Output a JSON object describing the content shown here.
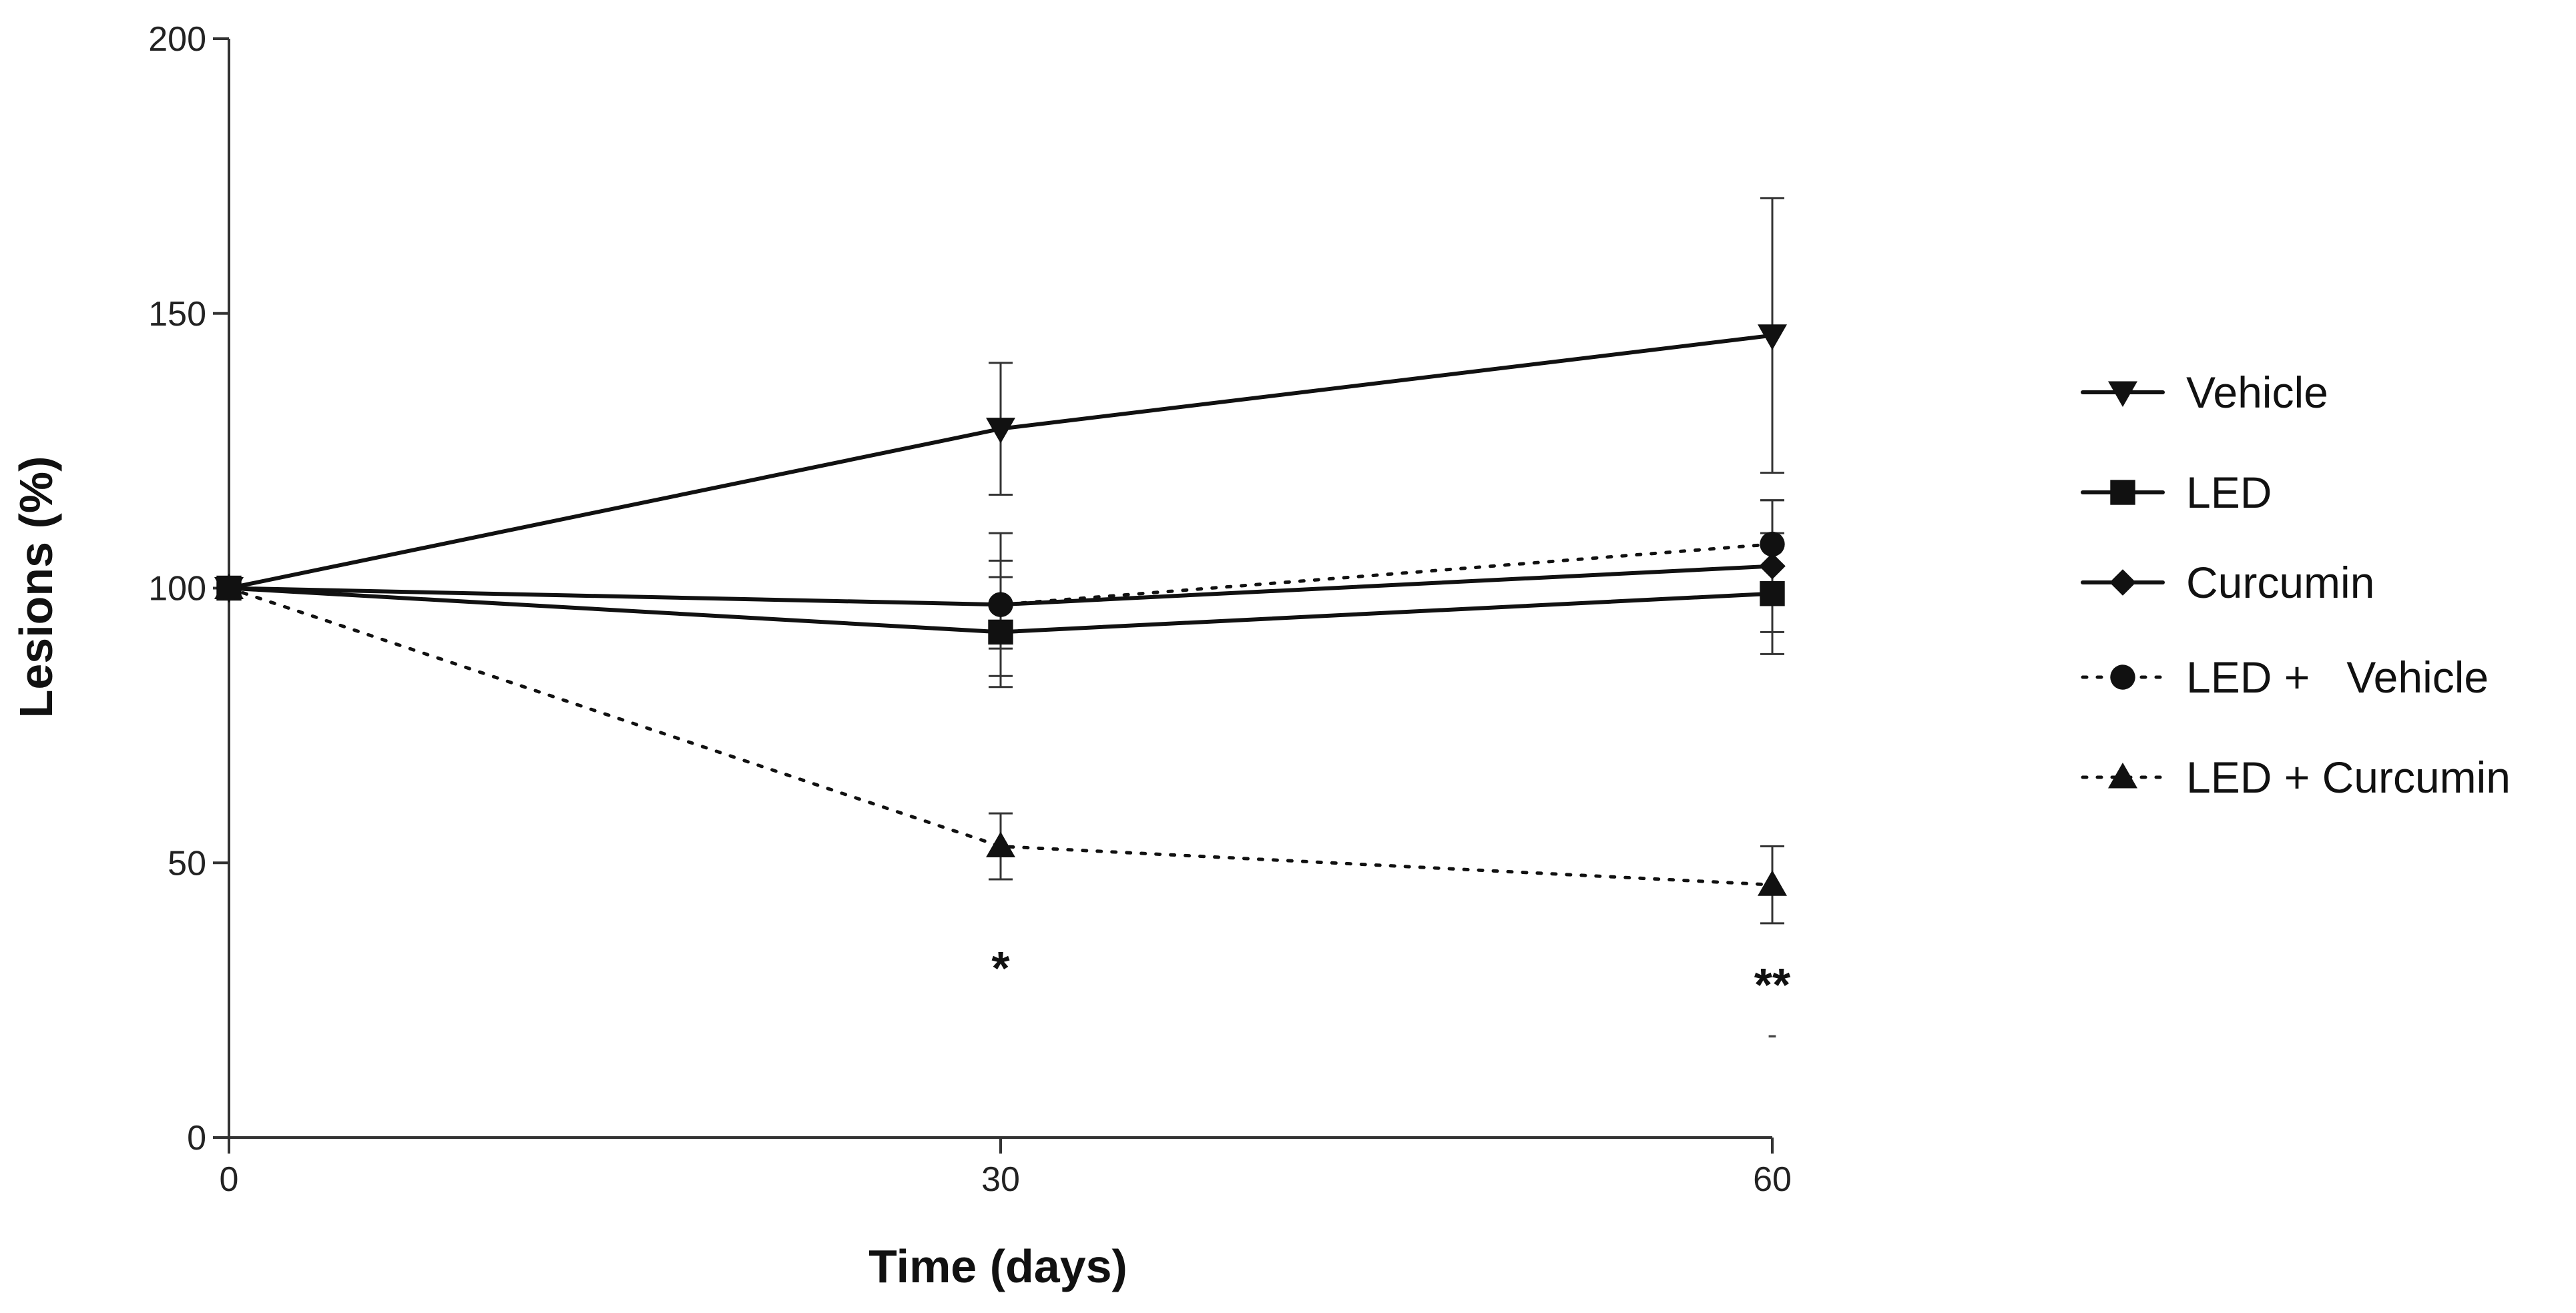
{
  "chart_data": {
    "type": "line",
    "title": "",
    "xlabel": "Time (days)",
    "ylabel": "Lesions (%)",
    "x": [
      0,
      30,
      60
    ],
    "x_ticks": [
      "0",
      "30",
      "60"
    ],
    "xlim": [
      0,
      60
    ],
    "ylim": [
      0,
      200
    ],
    "y_ticks": [
      "0",
      "50",
      "100",
      "150",
      "200"
    ],
    "grid": false,
    "legend_position": "right",
    "series": [
      {
        "name": "Vehicle",
        "marker": "triangle-down",
        "line": "solid",
        "values": [
          100,
          129,
          146
        ],
        "errors": [
          0,
          12,
          25
        ]
      },
      {
        "name": "LED",
        "marker": "square",
        "line": "solid",
        "values": [
          100,
          92,
          99
        ],
        "errors": [
          0,
          10,
          11
        ]
      },
      {
        "name": "Curcumin",
        "marker": "diamond",
        "line": "solid",
        "values": [
          100,
          97,
          104
        ],
        "errors": [
          0,
          8,
          12
        ]
      },
      {
        "name": "LED +   Vehicle",
        "marker": "circle",
        "line": "dotted",
        "values": [
          100,
          97,
          108
        ],
        "errors": [
          0,
          13,
          8
        ]
      },
      {
        "name": "LED + Curcumin",
        "marker": "triangle-up",
        "line": "dotted",
        "values": [
          100,
          53,
          46
        ],
        "errors": [
          0,
          6,
          7
        ]
      }
    ],
    "annotations": [
      {
        "x": 30,
        "text": "*"
      },
      {
        "x": 60,
        "text": "**"
      },
      {
        "x": 60,
        "text": "-"
      }
    ]
  }
}
